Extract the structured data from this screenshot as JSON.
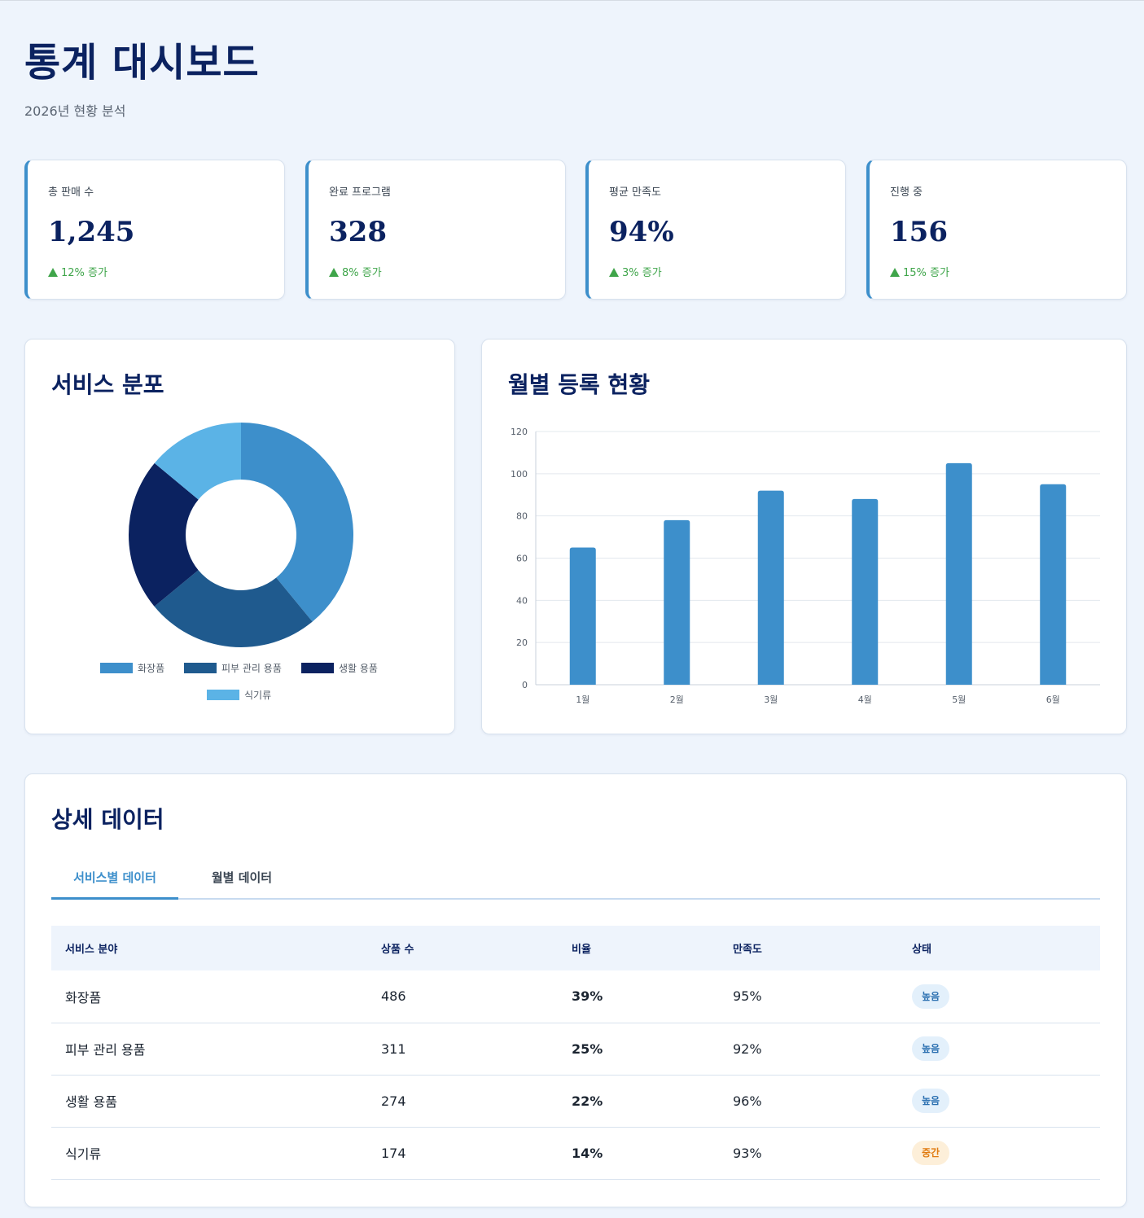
{
  "header": {
    "title": "통계 대시보드",
    "subtitle": "2026년 현황 분석"
  },
  "kpis": [
    {
      "label": "총 판매 수",
      "value": "1,245",
      "change": "12% 증가"
    },
    {
      "label": "완료 프로그램",
      "value": "328",
      "change": "8% 증가"
    },
    {
      "label": "평균 만족도",
      "value": "94%",
      "change": "3% 증가"
    },
    {
      "label": "진행 중",
      "value": "156",
      "change": "15% 증가"
    }
  ],
  "donut": {
    "title": "서비스 분포",
    "legend": [
      "화장품",
      "피부 관리 용품",
      "생활 용품",
      "식기류"
    ]
  },
  "bar": {
    "title": "월별 등록 현황"
  },
  "colors": {
    "accent": "#3d8fcb",
    "navy": "#0b2260",
    "mid_blue": "#1f5a8e",
    "light_blue": "#5bb3e6",
    "increase_green": "#3fa54a",
    "badge_high_text": "#2a6fb0",
    "badge_mid_text": "#e07b10"
  },
  "chart_data": [
    {
      "type": "pie",
      "title": "서비스 분포",
      "categories": [
        "화장품",
        "피부 관리 용품",
        "생활 용품",
        "식기류"
      ],
      "values": [
        486,
        311,
        274,
        174
      ],
      "colors": [
        "#3d8fcb",
        "#1f5a8e",
        "#0b2260",
        "#5bb3e6"
      ],
      "legend": "bottom"
    },
    {
      "type": "bar",
      "title": "월별 등록 현황",
      "categories": [
        "1월",
        "2월",
        "3월",
        "4월",
        "5월",
        "6월"
      ],
      "values": [
        65,
        78,
        92,
        88,
        105,
        95
      ],
      "ylim": [
        0,
        120
      ],
      "yticks": [
        0,
        20,
        40,
        60,
        80,
        100,
        120
      ],
      "grid": true,
      "color": "#3d8fcb"
    }
  ],
  "details": {
    "title": "상세 데이터",
    "tabs": [
      {
        "label": "서비스별 데이터",
        "active": true
      },
      {
        "label": "월별 데이터",
        "active": false
      }
    ],
    "columns": [
      "서비스 분야",
      "상품 수",
      "비율",
      "만족도",
      "상태"
    ],
    "rows": [
      {
        "name": "화장품",
        "count": "486",
        "ratio": "39%",
        "satisfaction": "95%",
        "status": "높음"
      },
      {
        "name": "피부 관리 용품",
        "count": "311",
        "ratio": "25%",
        "satisfaction": "92%",
        "status": "높음"
      },
      {
        "name": "생활 용품",
        "count": "274",
        "ratio": "22%",
        "satisfaction": "96%",
        "status": "높음"
      },
      {
        "name": "식기류",
        "count": "174",
        "ratio": "14%",
        "satisfaction": "93%",
        "status": "중간"
      }
    ]
  }
}
